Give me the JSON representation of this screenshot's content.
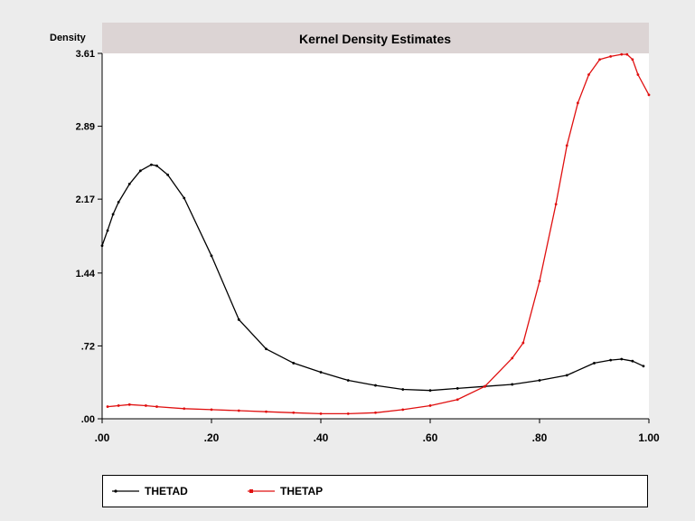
{
  "chart_data": {
    "type": "line",
    "title": "Kernel Density Estimates",
    "ylabel": "Density",
    "xlabel": "",
    "xlim": [
      0,
      1
    ],
    "ylim": [
      0,
      3.61
    ],
    "x_ticks": [
      ".00",
      ".20",
      ".40",
      ".60",
      ".80",
      "1.00"
    ],
    "x_tick_values": [
      0,
      0.2,
      0.4,
      0.6,
      0.8,
      1.0
    ],
    "y_ticks": [
      ".00",
      ".72",
      "1.44",
      "2.17",
      "2.89",
      "3.61"
    ],
    "y_tick_values": [
      0,
      0.72,
      1.44,
      2.17,
      2.89,
      3.61
    ],
    "grid": false,
    "legend_position": "bottom",
    "series": [
      {
        "name": "THETAD",
        "color": "#000000",
        "x": [
          0.0,
          0.01,
          0.02,
          0.03,
          0.05,
          0.07,
          0.09,
          0.1,
          0.12,
          0.15,
          0.2,
          0.25,
          0.3,
          0.35,
          0.4,
          0.45,
          0.5,
          0.55,
          0.6,
          0.65,
          0.7,
          0.75,
          0.8,
          0.85,
          0.9,
          0.93,
          0.95,
          0.97,
          0.99
        ],
        "y": [
          1.71,
          1.86,
          2.02,
          2.14,
          2.32,
          2.45,
          2.51,
          2.5,
          2.41,
          2.18,
          1.61,
          0.98,
          0.69,
          0.55,
          0.46,
          0.38,
          0.33,
          0.29,
          0.28,
          0.3,
          0.32,
          0.34,
          0.38,
          0.43,
          0.55,
          0.58,
          0.59,
          0.57,
          0.52
        ]
      },
      {
        "name": "THETAP",
        "color": "#e01010",
        "x": [
          0.01,
          0.03,
          0.05,
          0.08,
          0.1,
          0.15,
          0.2,
          0.25,
          0.3,
          0.35,
          0.4,
          0.45,
          0.5,
          0.55,
          0.6,
          0.65,
          0.7,
          0.75,
          0.77,
          0.8,
          0.83,
          0.85,
          0.87,
          0.89,
          0.91,
          0.93,
          0.95,
          0.96,
          0.97,
          0.98,
          1.0
        ],
        "y": [
          0.12,
          0.13,
          0.14,
          0.13,
          0.12,
          0.1,
          0.09,
          0.08,
          0.07,
          0.06,
          0.05,
          0.05,
          0.06,
          0.09,
          0.13,
          0.19,
          0.32,
          0.6,
          0.75,
          1.36,
          2.12,
          2.7,
          3.12,
          3.4,
          3.55,
          3.58,
          3.6,
          3.6,
          3.55,
          3.4,
          3.2
        ]
      }
    ]
  },
  "legend": {
    "items": [
      {
        "label": "THETAD"
      },
      {
        "label": "THETAP"
      }
    ]
  }
}
